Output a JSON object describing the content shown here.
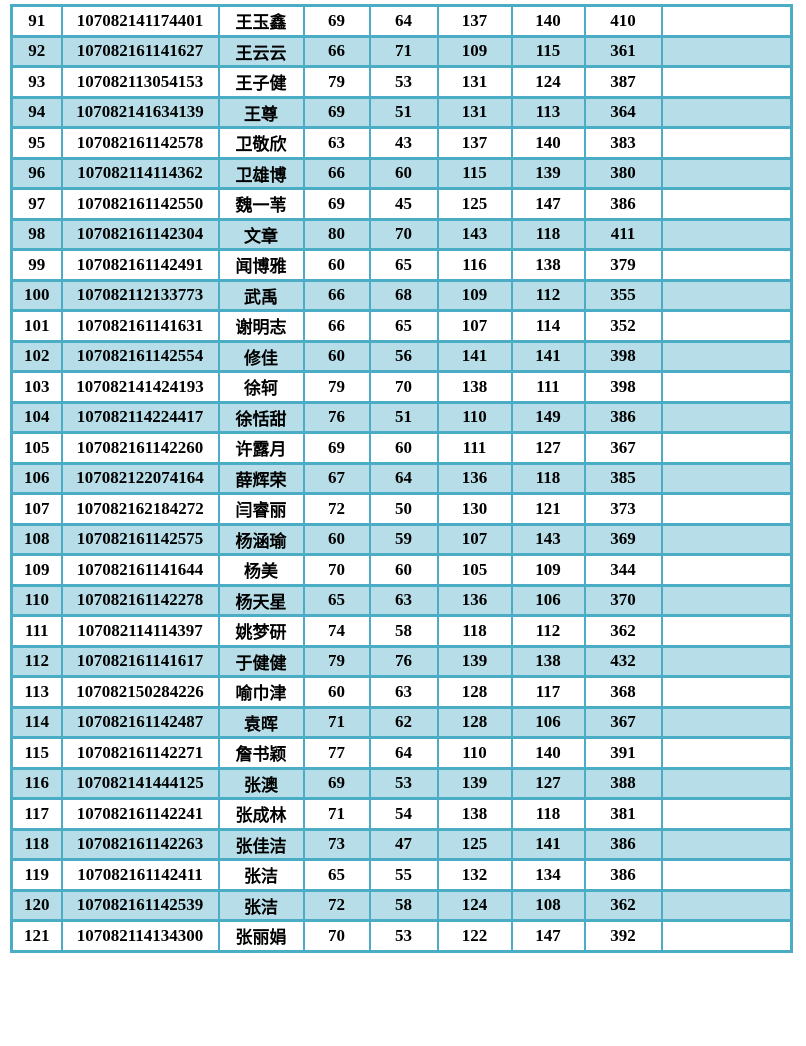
{
  "colors": {
    "grid_border": "#4bacc6",
    "row_stripe": "#b7dee8",
    "background": "#ffffff",
    "text": "#000000"
  },
  "table": {
    "rows": [
      [
        "91",
        "107082141174401",
        "王玉鑫",
        "69",
        "64",
        "137",
        "140",
        "410",
        ""
      ],
      [
        "92",
        "107082161141627",
        "王云云",
        "66",
        "71",
        "109",
        "115",
        "361",
        ""
      ],
      [
        "93",
        "107082113054153",
        "王子健",
        "79",
        "53",
        "131",
        "124",
        "387",
        ""
      ],
      [
        "94",
        "107082141634139",
        "王尊",
        "69",
        "51",
        "131",
        "113",
        "364",
        ""
      ],
      [
        "95",
        "107082161142578",
        "卫敬欣",
        "63",
        "43",
        "137",
        "140",
        "383",
        ""
      ],
      [
        "96",
        "107082114114362",
        "卫雄博",
        "66",
        "60",
        "115",
        "139",
        "380",
        ""
      ],
      [
        "97",
        "107082161142550",
        "魏一苇",
        "69",
        "45",
        "125",
        "147",
        "386",
        ""
      ],
      [
        "98",
        "107082161142304",
        "文章",
        "80",
        "70",
        "143",
        "118",
        "411",
        ""
      ],
      [
        "99",
        "107082161142491",
        "闻博雅",
        "60",
        "65",
        "116",
        "138",
        "379",
        ""
      ],
      [
        "100",
        "107082112133773",
        "武禹",
        "66",
        "68",
        "109",
        "112",
        "355",
        ""
      ],
      [
        "101",
        "107082161141631",
        "谢明志",
        "66",
        "65",
        "107",
        "114",
        "352",
        ""
      ],
      [
        "102",
        "107082161142554",
        "修佳",
        "60",
        "56",
        "141",
        "141",
        "398",
        ""
      ],
      [
        "103",
        "107082141424193",
        "徐轲",
        "79",
        "70",
        "138",
        "111",
        "398",
        ""
      ],
      [
        "104",
        "107082114224417",
        "徐恬甜",
        "76",
        "51",
        "110",
        "149",
        "386",
        ""
      ],
      [
        "105",
        "107082161142260",
        "许露月",
        "69",
        "60",
        "111",
        "127",
        "367",
        ""
      ],
      [
        "106",
        "107082122074164",
        "薛辉荣",
        "67",
        "64",
        "136",
        "118",
        "385",
        ""
      ],
      [
        "107",
        "107082162184272",
        "闫睿丽",
        "72",
        "50",
        "130",
        "121",
        "373",
        ""
      ],
      [
        "108",
        "107082161142575",
        "杨涵瑜",
        "60",
        "59",
        "107",
        "143",
        "369",
        ""
      ],
      [
        "109",
        "107082161141644",
        "杨美",
        "70",
        "60",
        "105",
        "109",
        "344",
        ""
      ],
      [
        "110",
        "107082161142278",
        "杨天星",
        "65",
        "63",
        "136",
        "106",
        "370",
        ""
      ],
      [
        "111",
        "107082114114397",
        "姚梦研",
        "74",
        "58",
        "118",
        "112",
        "362",
        ""
      ],
      [
        "112",
        "107082161141617",
        "于健健",
        "79",
        "76",
        "139",
        "138",
        "432",
        ""
      ],
      [
        "113",
        "107082150284226",
        "喻巾津",
        "60",
        "63",
        "128",
        "117",
        "368",
        ""
      ],
      [
        "114",
        "107082161142487",
        "袁晖",
        "71",
        "62",
        "128",
        "106",
        "367",
        ""
      ],
      [
        "115",
        "107082161142271",
        "詹书颖",
        "77",
        "64",
        "110",
        "140",
        "391",
        ""
      ],
      [
        "116",
        "107082141444125",
        "张澳",
        "69",
        "53",
        "139",
        "127",
        "388",
        ""
      ],
      [
        "117",
        "107082161142241",
        "张成林",
        "71",
        "54",
        "138",
        "118",
        "381",
        ""
      ],
      [
        "118",
        "107082161142263",
        "张佳洁",
        "73",
        "47",
        "125",
        "141",
        "386",
        ""
      ],
      [
        "119",
        "107082161142411",
        "张洁",
        "65",
        "55",
        "132",
        "134",
        "386",
        ""
      ],
      [
        "120",
        "107082161142539",
        "张洁",
        "72",
        "58",
        "124",
        "108",
        "362",
        ""
      ],
      [
        "121",
        "107082114134300",
        "张丽娟",
        "70",
        "53",
        "122",
        "147",
        "392",
        ""
      ]
    ]
  }
}
